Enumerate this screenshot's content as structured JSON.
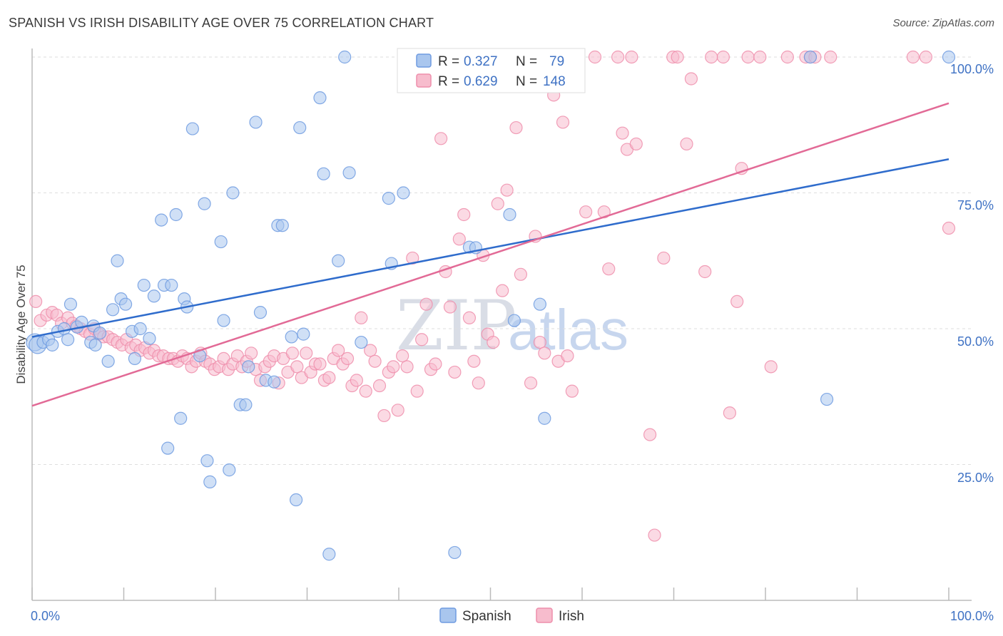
{
  "title": "SPANISH VS IRISH DISABILITY AGE OVER 75 CORRELATION CHART",
  "source": "Source: ZipAtlas.com",
  "watermark": {
    "zip": "ZIP",
    "atlas": "atlas"
  },
  "colors": {
    "spanish_fill": "#a9c6ee",
    "spanish_stroke": "#6f9be0",
    "spanish_line": "#2f6ccc",
    "irish_fill": "#f7bccd",
    "irish_stroke": "#ee8eab",
    "irish_line": "#e26a96",
    "tick_label": "#3f72c4"
  },
  "legend": {
    "rows": [
      {
        "r_label": "R =",
        "r_value": "0.327",
        "n_label": "N =",
        "n_value": "79"
      },
      {
        "r_label": "R =",
        "r_value": "0.629",
        "n_label": "N =",
        "n_value": "148"
      }
    ]
  },
  "bottom_legend": {
    "spanish": "Spanish",
    "irish": "Irish"
  },
  "chart_data": {
    "type": "scatter",
    "title": "SPANISH VS IRISH DISABILITY AGE OVER 75 CORRELATION CHART",
    "xlabel": "",
    "ylabel": "Disability Age Over 75",
    "xlim": [
      0,
      100
    ],
    "ylim": [
      0,
      100
    ],
    "x_tick_labels": [
      "0.0%",
      "100.0%"
    ],
    "y_tick_labels": [
      "25.0%",
      "50.0%",
      "75.0%",
      "100.0%"
    ],
    "y_ticks": [
      25,
      50,
      75,
      100
    ],
    "grid": true,
    "legend_position": "top-center",
    "series": [
      {
        "name": "Spanish",
        "r": 0.327,
        "n": 79,
        "trend": {
          "x": [
            0,
            100
          ],
          "y": [
            48.5,
            81.2
          ]
        },
        "points": [
          [
            0.3,
            47.5
          ],
          [
            0.6,
            47
          ],
          [
            1.2,
            47.5
          ],
          [
            1.8,
            48
          ],
          [
            2.2,
            47
          ],
          [
            2.8,
            49.5
          ],
          [
            3.5,
            50
          ],
          [
            3.9,
            48
          ],
          [
            4.2,
            54.5
          ],
          [
            4.9,
            50.3
          ],
          [
            5.4,
            51.2
          ],
          [
            6.4,
            47.5
          ],
          [
            6.7,
            50.5
          ],
          [
            6.9,
            47
          ],
          [
            7.4,
            49.2
          ],
          [
            8.3,
            44
          ],
          [
            8.8,
            53.5
          ],
          [
            9.3,
            62.5
          ],
          [
            9.7,
            55.5
          ],
          [
            10.2,
            54.5
          ],
          [
            10.9,
            49.5
          ],
          [
            11.2,
            44.5
          ],
          [
            11.8,
            50
          ],
          [
            12.2,
            58
          ],
          [
            12.8,
            48.2
          ],
          [
            13.3,
            56
          ],
          [
            14.1,
            70
          ],
          [
            14.4,
            58
          ],
          [
            14.8,
            28
          ],
          [
            15.2,
            58
          ],
          [
            15.7,
            71
          ],
          [
            16.2,
            33.5
          ],
          [
            16.6,
            55.5
          ],
          [
            16.9,
            54
          ],
          [
            17.5,
            86.8
          ],
          [
            18.3,
            45
          ],
          [
            18.8,
            73
          ],
          [
            19.1,
            25.7
          ],
          [
            19.4,
            21.8
          ],
          [
            20.6,
            66
          ],
          [
            20.9,
            51.5
          ],
          [
            21.5,
            24
          ],
          [
            21.9,
            75
          ],
          [
            22.7,
            36
          ],
          [
            23.3,
            36
          ],
          [
            23.6,
            43
          ],
          [
            24.4,
            88
          ],
          [
            24.9,
            53
          ],
          [
            25.5,
            40.5
          ],
          [
            26.4,
            40.2
          ],
          [
            26.8,
            69
          ],
          [
            27.3,
            69
          ],
          [
            28.3,
            48.5
          ],
          [
            28.8,
            18.5
          ],
          [
            29.2,
            87
          ],
          [
            29.6,
            49
          ],
          [
            31.4,
            92.5
          ],
          [
            31.8,
            78.5
          ],
          [
            32.4,
            8.5
          ],
          [
            33.4,
            62.5
          ],
          [
            34.1,
            100
          ],
          [
            34.6,
            78.7
          ],
          [
            35.9,
            47.5
          ],
          [
            38.9,
            74
          ],
          [
            39.2,
            62
          ],
          [
            40.5,
            75
          ],
          [
            46.1,
            8.8
          ],
          [
            47.7,
            65
          ],
          [
            48.4,
            64.9
          ],
          [
            48.9,
            100
          ],
          [
            52.1,
            71
          ],
          [
            52.6,
            51.5
          ],
          [
            55.4,
            54.5
          ],
          [
            55.9,
            33.5
          ],
          [
            84.9,
            100
          ],
          [
            86.7,
            37
          ],
          [
            100,
            100
          ]
        ]
      },
      {
        "name": "Irish",
        "r": 0.629,
        "n": 148,
        "trend": {
          "x": [
            0,
            100
          ],
          "y": [
            35.8,
            91.5
          ]
        },
        "points": [
          [
            0.4,
            55
          ],
          [
            0.9,
            51.5
          ],
          [
            1.6,
            52.5
          ],
          [
            2.2,
            53
          ],
          [
            2.7,
            52.5
          ],
          [
            3.2,
            51
          ],
          [
            3.9,
            52
          ],
          [
            4.4,
            51
          ],
          [
            4.8,
            50.5
          ],
          [
            5.3,
            50
          ],
          [
            5.8,
            49.5
          ],
          [
            6.3,
            49
          ],
          [
            6.8,
            50
          ],
          [
            7.3,
            49
          ],
          [
            7.8,
            48.5
          ],
          [
            8.3,
            48.5
          ],
          [
            8.8,
            48
          ],
          [
            9.3,
            47.5
          ],
          [
            9.8,
            47
          ],
          [
            10.3,
            48
          ],
          [
            10.8,
            46.5
          ],
          [
            11.3,
            47
          ],
          [
            11.8,
            46
          ],
          [
            12.3,
            46.5
          ],
          [
            12.8,
            45.5
          ],
          [
            13.3,
            46
          ],
          [
            13.8,
            45
          ],
          [
            14.3,
            45
          ],
          [
            14.9,
            44.5
          ],
          [
            15.4,
            44.5
          ],
          [
            15.9,
            44
          ],
          [
            16.4,
            45
          ],
          [
            16.9,
            44.5
          ],
          [
            17.4,
            43
          ],
          [
            17.9,
            44
          ],
          [
            18.4,
            45.5
          ],
          [
            18.9,
            44
          ],
          [
            19.4,
            43.5
          ],
          [
            19.9,
            42.5
          ],
          [
            20.4,
            43
          ],
          [
            20.9,
            44.5
          ],
          [
            21.4,
            42.5
          ],
          [
            21.9,
            43.5
          ],
          [
            22.4,
            45
          ],
          [
            22.9,
            43
          ],
          [
            23.4,
            44
          ],
          [
            23.9,
            45.5
          ],
          [
            24.4,
            42.5
          ],
          [
            24.9,
            40.5
          ],
          [
            25.4,
            43
          ],
          [
            25.9,
            44
          ],
          [
            26.4,
            45
          ],
          [
            26.9,
            40
          ],
          [
            27.4,
            44.5
          ],
          [
            27.9,
            42
          ],
          [
            28.4,
            45.5
          ],
          [
            28.9,
            43
          ],
          [
            29.4,
            41
          ],
          [
            29.9,
            45.5
          ],
          [
            30.4,
            42
          ],
          [
            30.9,
            43.5
          ],
          [
            31.4,
            43.5
          ],
          [
            31.9,
            40.5
          ],
          [
            32.4,
            41
          ],
          [
            32.9,
            44.5
          ],
          [
            33.4,
            46
          ],
          [
            33.9,
            43.5
          ],
          [
            34.4,
            44.5
          ],
          [
            34.9,
            39.5
          ],
          [
            35.4,
            40.5
          ],
          [
            35.9,
            52
          ],
          [
            36.4,
            38.5
          ],
          [
            36.9,
            46
          ],
          [
            37.4,
            44
          ],
          [
            37.9,
            39.5
          ],
          [
            38.4,
            34
          ],
          [
            38.9,
            42
          ],
          [
            39.4,
            43
          ],
          [
            39.9,
            35
          ],
          [
            40.4,
            45
          ],
          [
            40.9,
            43
          ],
          [
            41.5,
            63
          ],
          [
            42.0,
            38.5
          ],
          [
            42.5,
            48
          ],
          [
            43.0,
            54.5
          ],
          [
            43.5,
            42.5
          ],
          [
            44,
            43.5
          ],
          [
            44.6,
            85
          ],
          [
            45.1,
            60.5
          ],
          [
            45.6,
            54
          ],
          [
            46.1,
            42
          ],
          [
            46.6,
            66.5
          ],
          [
            47.1,
            71
          ],
          [
            47.7,
            52
          ],
          [
            48.2,
            44
          ],
          [
            48.7,
            40
          ],
          [
            49.2,
            63.5
          ],
          [
            49.7,
            49
          ],
          [
            50.3,
            47.5
          ],
          [
            50.8,
            73
          ],
          [
            51.3,
            57
          ],
          [
            51.8,
            75.5
          ],
          [
            52.3,
            100
          ],
          [
            52.8,
            87
          ],
          [
            53.3,
            60
          ],
          [
            53.8,
            100
          ],
          [
            54.4,
            40
          ],
          [
            54.9,
            67
          ],
          [
            55.4,
            47.5
          ],
          [
            55.9,
            45.5
          ],
          [
            56.4,
            100
          ],
          [
            56.9,
            93
          ],
          [
            57.4,
            44
          ],
          [
            57.9,
            88
          ],
          [
            58.4,
            45
          ],
          [
            58.9,
            38.5
          ],
          [
            59.4,
            100
          ],
          [
            60.4,
            71.5
          ],
          [
            61.4,
            100
          ],
          [
            62.4,
            71.5
          ],
          [
            62.9,
            61
          ],
          [
            63.9,
            100
          ],
          [
            64.4,
            86
          ],
          [
            64.9,
            83
          ],
          [
            65.4,
            100
          ],
          [
            65.9,
            84
          ],
          [
            67.4,
            30.5
          ],
          [
            67.9,
            12
          ],
          [
            68.9,
            63
          ],
          [
            69.9,
            100
          ],
          [
            70.4,
            100
          ],
          [
            71.4,
            84
          ],
          [
            71.9,
            96
          ],
          [
            73.4,
            60.5
          ],
          [
            74.1,
            100
          ],
          [
            75.4,
            100
          ],
          [
            76.1,
            34.5
          ],
          [
            76.9,
            55
          ],
          [
            77.4,
            79.5
          ],
          [
            78.1,
            100
          ],
          [
            79.4,
            100
          ],
          [
            80.6,
            43
          ],
          [
            82.4,
            100
          ],
          [
            84.4,
            100
          ],
          [
            84.9,
            100
          ],
          [
            85.4,
            100
          ],
          [
            87.1,
            100
          ],
          [
            96.1,
            100
          ],
          [
            97.5,
            100
          ],
          [
            100,
            68.5
          ]
        ]
      }
    ]
  }
}
